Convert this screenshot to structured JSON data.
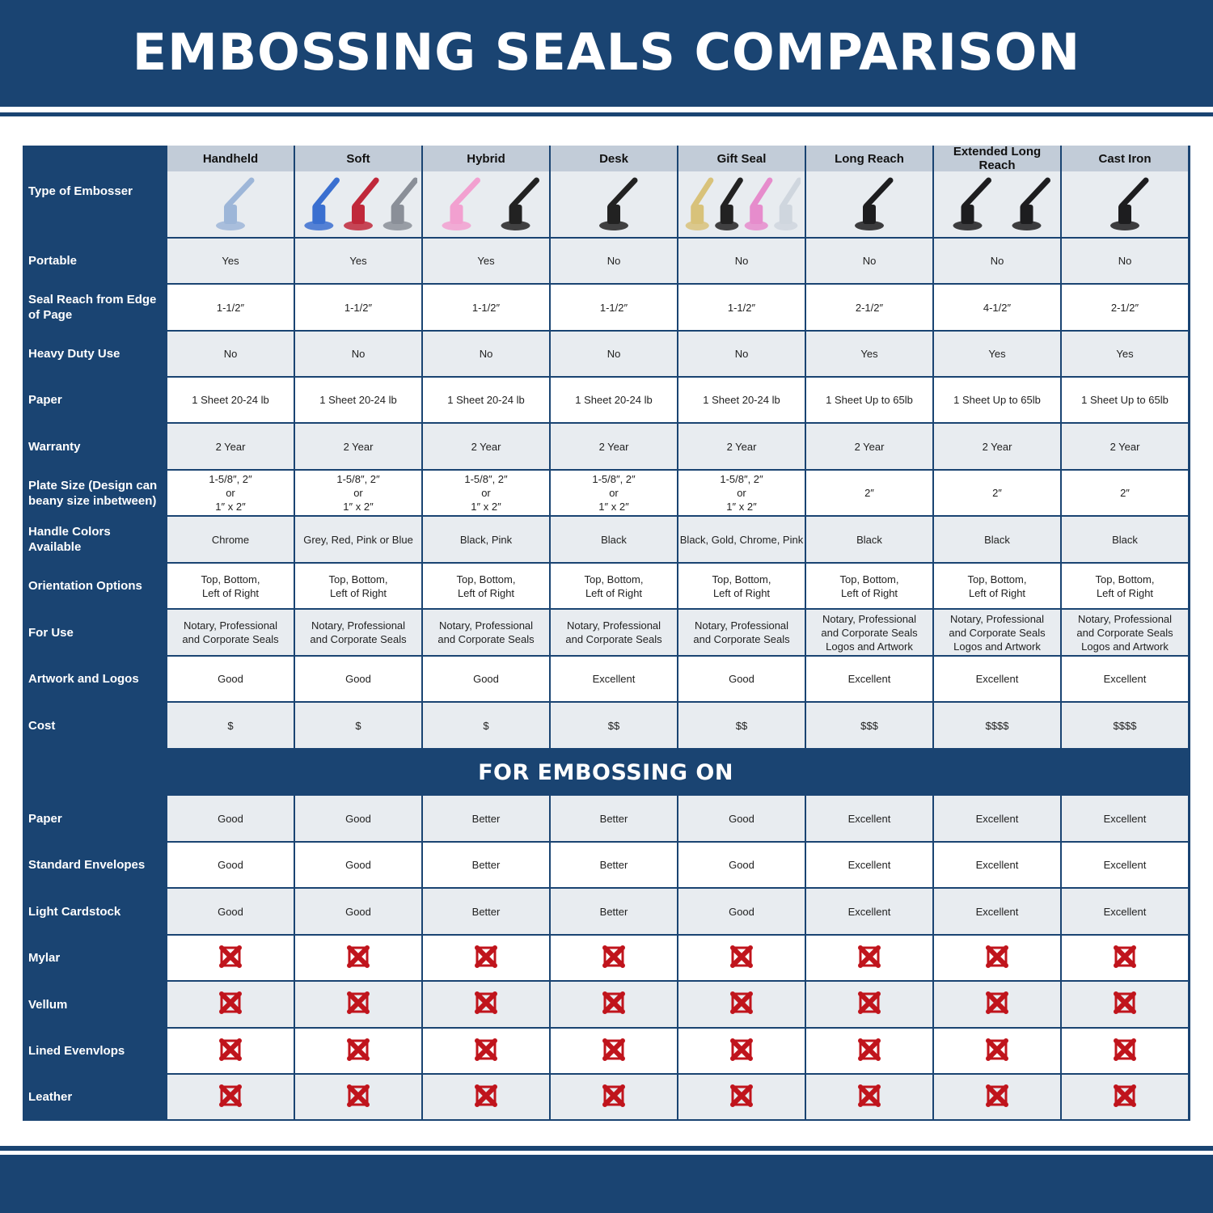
{
  "title": "EMBOSSING SEALS COMPARISON",
  "colors": {
    "brand_blue": "#1a4472",
    "header_gray": "#c2ccd8",
    "row_gray": "#e8ecf0",
    "x_red": "#c0141c"
  },
  "corner_label": "Type of Embosser",
  "columns": [
    "Handheld",
    "Soft",
    "Hybrid",
    "Desk",
    "Gift Seal",
    "Long Reach",
    "Extended Long Reach",
    "Cast Iron"
  ],
  "rows": [
    {
      "label": "Portable",
      "values": [
        "Yes",
        "Yes",
        "Yes",
        "No",
        "No",
        "No",
        "No",
        "No"
      ]
    },
    {
      "label": "Seal Reach from Edge\nof Page",
      "values": [
        "1-1/2″",
        "1-1/2″",
        "1-1/2″",
        "1-1/2″",
        "1-1/2″",
        "2-1/2″",
        "4-1/2″",
        "2-1/2″"
      ]
    },
    {
      "label": "Heavy Duty Use",
      "values": [
        "No",
        "No",
        "No",
        "No",
        "No",
        "Yes",
        "Yes",
        "Yes"
      ]
    },
    {
      "label": "Paper",
      "values": [
        "1 Sheet 20-24 lb",
        "1 Sheet 20-24 lb",
        "1 Sheet 20-24 lb",
        "1 Sheet 20-24 lb",
        "1 Sheet 20-24 lb",
        "1 Sheet Up to 65lb",
        "1 Sheet Up to 65lb",
        "1 Sheet Up to 65lb"
      ]
    },
    {
      "label": "Warranty",
      "values": [
        "2 Year",
        "2 Year",
        "2 Year",
        "2 Year",
        "2 Year",
        "2 Year",
        "2 Year",
        "2 Year"
      ]
    },
    {
      "label": "Plate Size (Design can\nbeany size inbetween)",
      "values": [
        "1-5/8″, 2″\nor\n1″ x 2″",
        "1-5/8″, 2″\nor\n1″ x 2″",
        "1-5/8″, 2″\nor\n1″ x 2″",
        "1-5/8″, 2″\nor\n1″ x 2″",
        "1-5/8″, 2″\nor\n1″ x 2″",
        "2″",
        "2″",
        "2″"
      ]
    },
    {
      "label": "Handle Colors Available",
      "values": [
        "Chrome",
        "Grey, Red, Pink or Blue",
        "Black, Pink",
        "Black",
        "Black, Gold, Chrome, Pink",
        "Black",
        "Black",
        "Black"
      ]
    },
    {
      "label": "Orientation Options",
      "values": [
        "Top, Bottom,\nLeft of Right",
        "Top, Bottom,\nLeft of Right",
        "Top, Bottom,\nLeft of Right",
        "Top, Bottom,\nLeft of Right",
        "Top, Bottom,\nLeft of Right",
        "Top, Bottom,\nLeft of Right",
        "Top, Bottom,\nLeft of Right",
        "Top, Bottom,\nLeft of Right"
      ]
    },
    {
      "label": "For Use",
      "values": [
        "Notary, Professional\nand Corporate Seals",
        "Notary, Professional\nand Corporate Seals",
        "Notary, Professional\nand Corporate Seals",
        "Notary, Professional\nand Corporate Seals",
        "Notary, Professional\nand Corporate Seals",
        "Notary, Professional\nand Corporate Seals\nLogos and Artwork",
        "Notary, Professional\nand Corporate Seals\nLogos and Artwork",
        "Notary, Professional\nand Corporate Seals\nLogos and Artwork"
      ]
    },
    {
      "label": "Artwork and Logos",
      "values": [
        "Good",
        "Good",
        "Good",
        "Excellent",
        "Good",
        "Excellent",
        "Excellent",
        "Excellent"
      ]
    },
    {
      "label": "Cost",
      "values": [
        "$",
        "$",
        "$",
        "$$",
        "$$",
        "$$$",
        "$$$$",
        "$$$$"
      ]
    }
  ],
  "section_title": "FOR EMBOSSING ON",
  "embossing_rows": [
    {
      "label": "Paper",
      "values": [
        "Good",
        "Good",
        "Better",
        "Better",
        "Good",
        "Excellent",
        "Excellent",
        "Excellent"
      ]
    },
    {
      "label": "Standard Envelopes",
      "values": [
        "Good",
        "Good",
        "Better",
        "Better",
        "Good",
        "Excellent",
        "Excellent",
        "Excellent"
      ]
    },
    {
      "label": "Light Cardstock",
      "values": [
        "Good",
        "Good",
        "Better",
        "Better",
        "Good",
        "Excellent",
        "Excellent",
        "Excellent"
      ]
    },
    {
      "label": "Mylar",
      "icon": "red-x-icon",
      "suitable": [
        false,
        false,
        false,
        false,
        false,
        false,
        false,
        false
      ]
    },
    {
      "label": "Vellum",
      "icon": "red-x-icon",
      "suitable": [
        false,
        false,
        false,
        false,
        false,
        false,
        false,
        false
      ]
    },
    {
      "label": "Lined Evenvlops",
      "icon": "red-x-icon",
      "suitable": [
        false,
        false,
        false,
        false,
        false,
        false,
        false,
        false
      ]
    },
    {
      "label": "Leather",
      "icon": "red-x-icon",
      "suitable": [
        false,
        false,
        false,
        false,
        false,
        false,
        false,
        false
      ]
    }
  ]
}
